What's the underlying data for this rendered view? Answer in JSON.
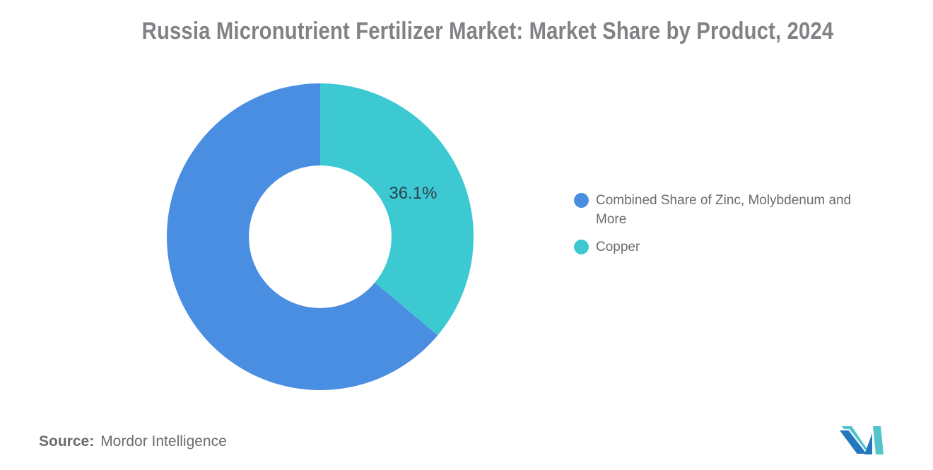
{
  "title": "Russia Micronutrient Fertilizer Market: Market Share by Product, 2024",
  "legend": [
    {
      "label": "Combined Share of Zinc, Molybdenum and More",
      "color": "#4A8EE2"
    },
    {
      "label": "Copper",
      "color": "#3CC9D2"
    }
  ],
  "chart_data": {
    "type": "pie",
    "donut": true,
    "title": "Russia Micronutrient Fertilizer Market: Market Share by Product, 2024",
    "slices": [
      {
        "label": "Combined Share of Zinc, Molybdenum and More",
        "value": 63.9,
        "color": "#4A8EE2",
        "data_label": null
      },
      {
        "label": "Copper",
        "value": 36.1,
        "color": "#3CC9D2",
        "data_label": "36.1%"
      }
    ],
    "start_angle_deg": 0,
    "winding": "counterclockwise",
    "inner_radius_ratio": 0.465,
    "legend_position": "right",
    "data_label_color": "#2F424D",
    "background": "#FFFFFF"
  },
  "source": {
    "label": "Source:",
    "value": "Mordor Intelligence"
  },
  "logo": {
    "name": "mordor-intelligence-logo",
    "colors": {
      "blue": "#2377BC",
      "teal": "#53C3CC"
    }
  }
}
